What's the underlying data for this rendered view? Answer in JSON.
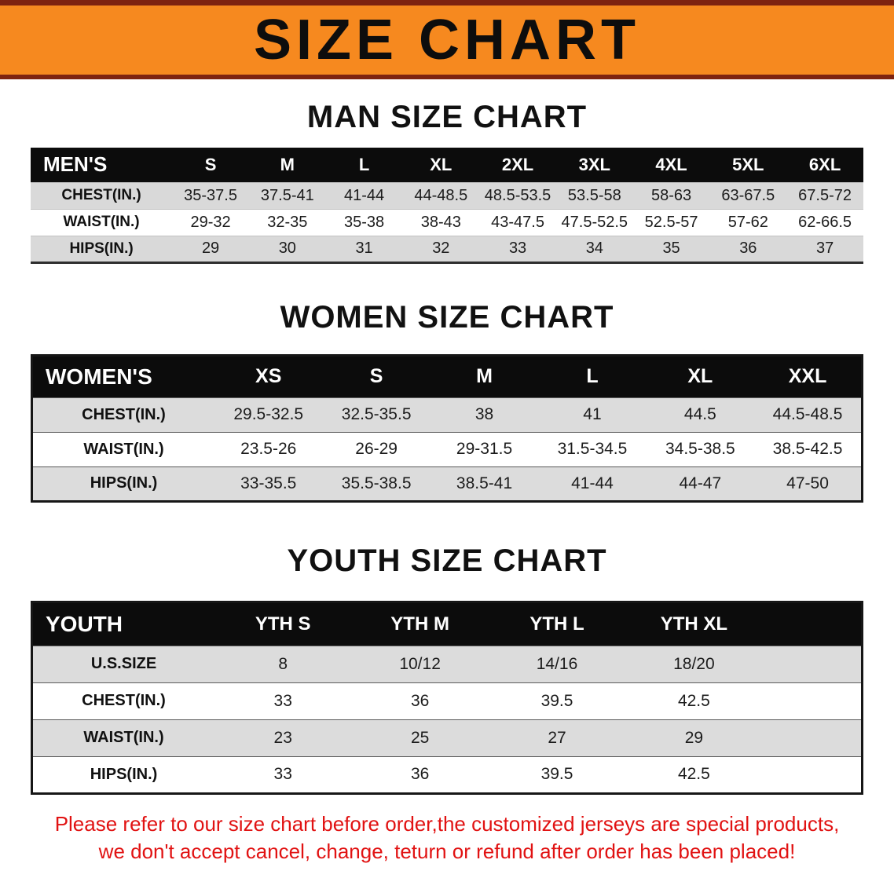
{
  "banner": {
    "title": "SIZE CHART",
    "bg_color": "#f6891f",
    "stripe_color": "#7e2310"
  },
  "sections": [
    {
      "heading": "MAN SIZE CHART",
      "table": {
        "corner_label": "MEN'S",
        "columns": [
          "S",
          "M",
          "L",
          "XL",
          "2XL",
          "3XL",
          "4XL",
          "5XL",
          "6XL"
        ],
        "rows": [
          {
            "label": "CHEST(IN.)",
            "values": [
              "35-37.5",
              "37.5-41",
              "41-44",
              "44-48.5",
              "48.5-53.5",
              "53.5-58",
              "58-63",
              "63-67.5",
              "67.5-72"
            ]
          },
          {
            "label": "WAIST(IN.)",
            "values": [
              "29-32",
              "32-35",
              "35-38",
              "38-43",
              "43-47.5",
              "47.5-52.5",
              "52.5-57",
              "57-62",
              "62-66.5"
            ]
          },
          {
            "label": "HIPS(IN.)",
            "values": [
              "29",
              "30",
              "31",
              "32",
              "33",
              "34",
              "35",
              "36",
              "37"
            ]
          }
        ]
      }
    },
    {
      "heading": "WOMEN SIZE CHART",
      "table": {
        "corner_label": "WOMEN'S",
        "columns": [
          "XS",
          "S",
          "M",
          "L",
          "XL",
          "XXL"
        ],
        "rows": [
          {
            "label": "CHEST(IN.)",
            "values": [
              "29.5-32.5",
              "32.5-35.5",
              "38",
              "41",
              "44.5",
              "44.5-48.5"
            ]
          },
          {
            "label": "WAIST(IN.)",
            "values": [
              "23.5-26",
              "26-29",
              "29-31.5",
              "31.5-34.5",
              "34.5-38.5",
              "38.5-42.5"
            ]
          },
          {
            "label": "HIPS(IN.)",
            "values": [
              "33-35.5",
              "35.5-38.5",
              "38.5-41",
              "41-44",
              "44-47",
              "47-50"
            ]
          }
        ]
      }
    },
    {
      "heading": "YOUTH SIZE CHART",
      "table": {
        "corner_label": "YOUTH",
        "columns": [
          "YTH S",
          "YTH M",
          "YTH L",
          "YTH XL"
        ],
        "rows": [
          {
            "label": "U.S.SIZE",
            "values": [
              "8",
              "10/12",
              "14/16",
              "18/20"
            ]
          },
          {
            "label": "CHEST(IN.)",
            "values": [
              "33",
              "36",
              "39.5",
              "42.5"
            ]
          },
          {
            "label": "WAIST(IN.)",
            "values": [
              "23",
              "25",
              "27",
              "29"
            ]
          },
          {
            "label": "HIPS(IN.)",
            "values": [
              "33",
              "36",
              "39.5",
              "42.5"
            ]
          }
        ]
      }
    }
  ],
  "disclaimer": {
    "line1": "Please refer to our size chart before order,the customized jerseys are special products,",
    "line2": "we don't accept cancel, change, teturn or refund after order has been placed!",
    "color": "#e11212"
  },
  "colors": {
    "header_bar": "#0c0c0c",
    "row_stripe": "#d9d9d9",
    "background": "#ffffff"
  }
}
